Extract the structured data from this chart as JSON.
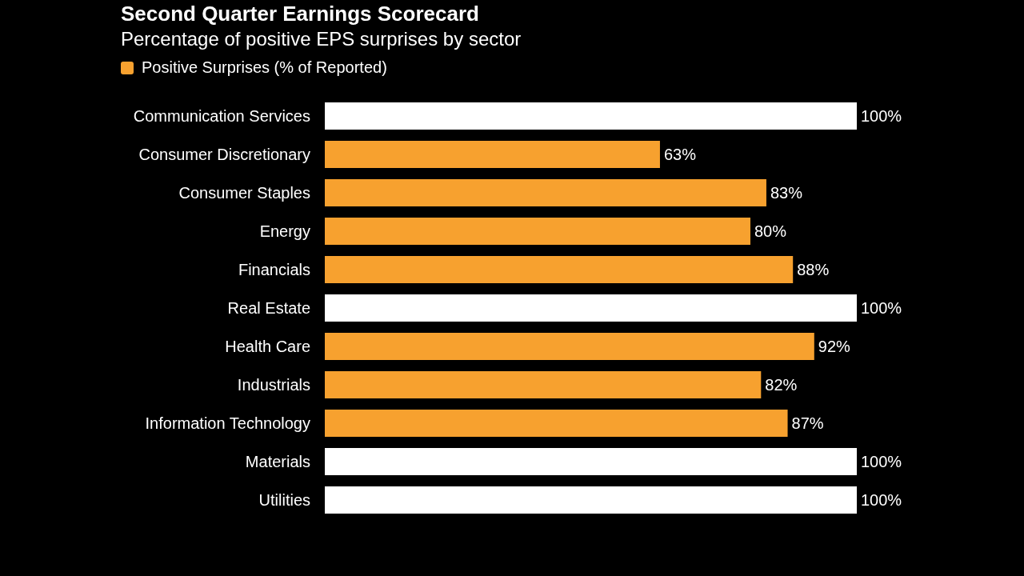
{
  "chart_data": {
    "type": "bar",
    "orientation": "horizontal",
    "title": "Second Quarter Earnings Scorecard",
    "subtitle": "Percentage of positive EPS surprises by sector",
    "categories": [
      "Communication Services",
      "Consumer Discretionary",
      "Consumer Staples",
      "Energy",
      "Financials",
      "Real Estate",
      "Health Care",
      "Industrials",
      "Information Technology",
      "Materials",
      "Utilities"
    ],
    "series": [
      {
        "name": "Positive Surprises (% of Reported)",
        "color": "#f7a12f",
        "values": [
          100,
          63,
          83,
          80,
          88,
          100,
          92,
          82,
          87,
          100,
          100
        ],
        "colors": [
          "#ffffff",
          "#f7a12f",
          "#f7a12f",
          "#f7a12f",
          "#f7a12f",
          "#ffffff",
          "#f7a12f",
          "#f7a12f",
          "#f7a12f",
          "#ffffff",
          "#ffffff"
        ],
        "value_labels": [
          "100%",
          "63%",
          "83%",
          "80%",
          "88%",
          "100%",
          "92%",
          "82%",
          "87%",
          "100%",
          "100%"
        ]
      }
    ],
    "legend": "top left",
    "tick_labels": "y",
    "grid": false
  }
}
